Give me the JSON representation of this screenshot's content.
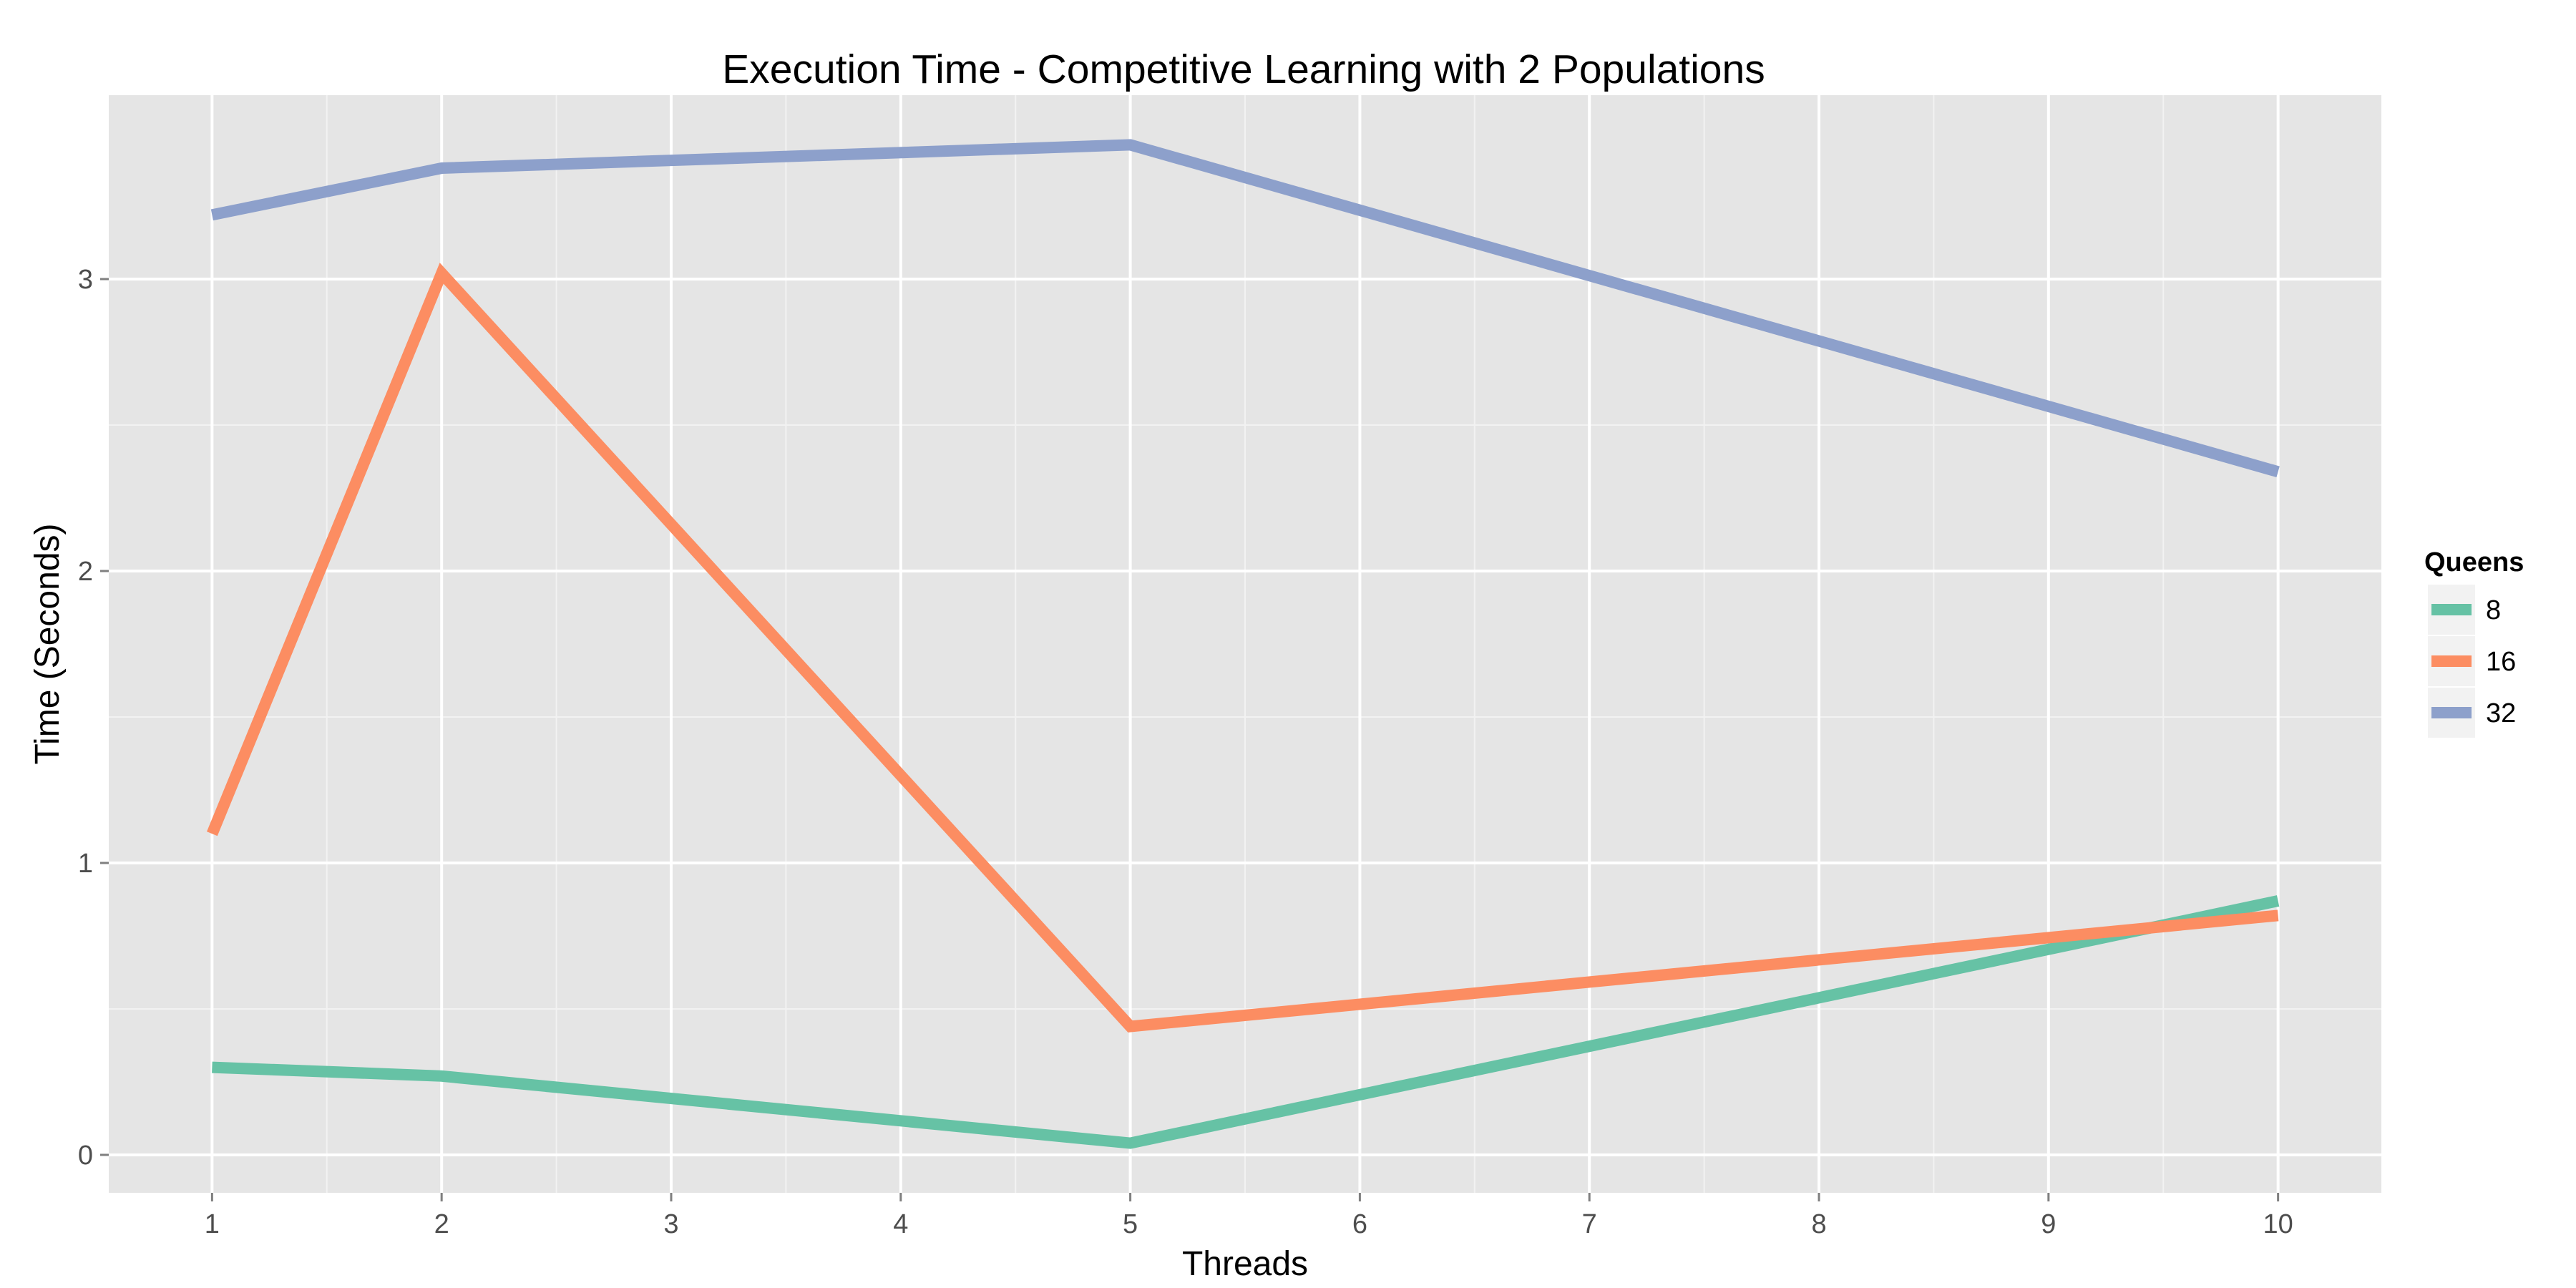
{
  "chart_data": {
    "type": "line",
    "title": "Execution Time - Competitive Learning with 2 Populations",
    "xlabel": "Threads",
    "ylabel": "Time (Seconds)",
    "x": [
      1,
      2,
      5,
      10
    ],
    "xlim": [
      0.55,
      10.45
    ],
    "ylim": [
      -0.13,
      3.63
    ],
    "x_ticks": [
      1,
      2,
      3,
      4,
      5,
      6,
      7,
      8,
      9,
      10
    ],
    "y_ticks": [
      0,
      1,
      2,
      3
    ],
    "grid": true,
    "legend": {
      "title": "Queens",
      "position": "right"
    },
    "series": [
      {
        "name": "8",
        "color": "#66c2a5",
        "values": [
          0.3,
          0.27,
          0.04,
          0.87
        ]
      },
      {
        "name": "16",
        "color": "#fc8d62",
        "values": [
          1.1,
          3.02,
          0.44,
          0.82
        ]
      },
      {
        "name": "32",
        "color": "#8da0cb",
        "values": [
          3.22,
          3.38,
          3.46,
          2.34
        ]
      }
    ]
  }
}
